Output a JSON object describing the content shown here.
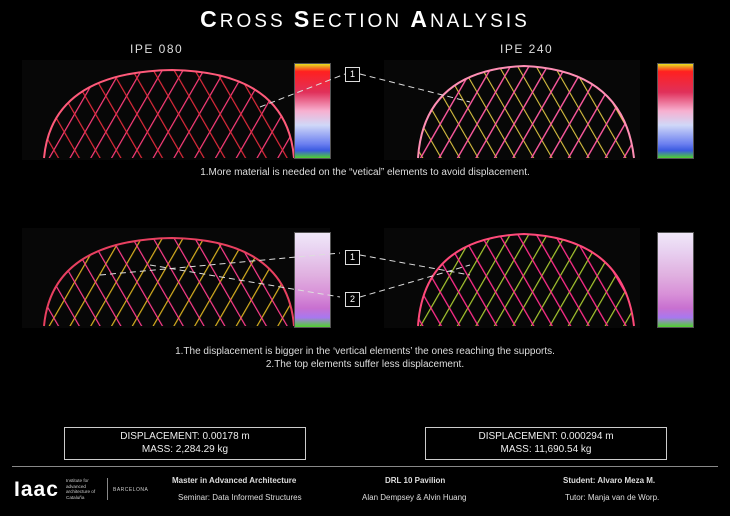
{
  "title": {
    "c1": "C",
    "r1": "ROSS ",
    "c2": "S",
    "r2": "ECTION ",
    "c3": "A",
    "r3": "NALYSIS"
  },
  "labels": {
    "left": "IPE 080",
    "right": "IPE 240"
  },
  "notes": {
    "row1": "1.More material is needed on the “vetical” elements to avoid displacement.",
    "row2_line1": "1.The displacement is bigger in the ‘vertical elements’ the ones reaching the supports.",
    "row2_line2": "2.The top elements suffer less displacement."
  },
  "callouts": {
    "one": "1",
    "two": "2"
  },
  "results": {
    "left": {
      "displacement": "DISPLACEMENT: 0.00178 m",
      "mass": "MASS: 2,284.29 kg"
    },
    "right": {
      "displacement": "DISPLACEMENT: 0.000294 m",
      "mass": "MASS: 11,690.54 kg"
    }
  },
  "footer": {
    "logo": "Iaac",
    "logo_sub": "Institute for advanced architecture of Cataluña",
    "city": "BARCELONA",
    "program": "Master in Advanced Architecture",
    "seminar": "Seminar: Data Informed Structures",
    "project": "DRL 10 Pavilion",
    "authors": "Alan Dempsey & Alvin Huang",
    "student": "Student: Alvaro Meza M.",
    "tutor": "Tutor: Manja van de Worp."
  }
}
